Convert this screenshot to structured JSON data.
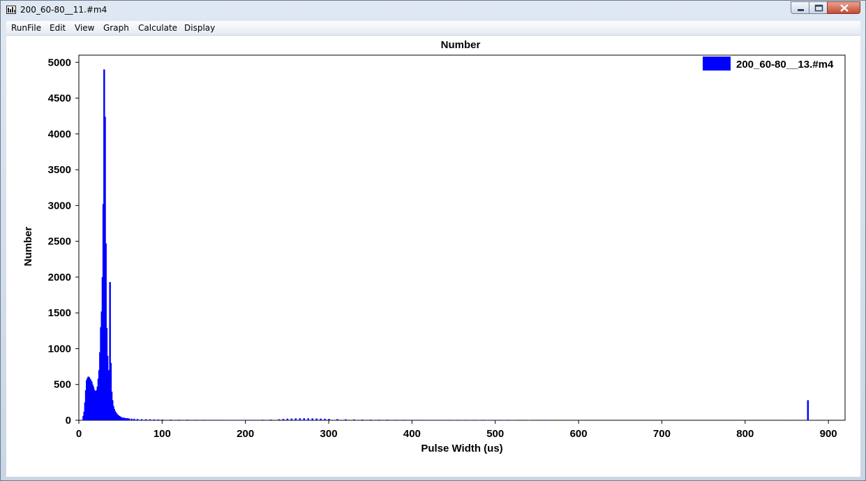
{
  "window": {
    "title": "200_60-80__11.#m4"
  },
  "menu": [
    "RunFile",
    "Edit",
    "View",
    "Graph",
    "Calculate",
    "Display"
  ],
  "chart_data": {
    "type": "bar",
    "title": "Number",
    "xlabel": "Pulse Width (us)",
    "ylabel": "Number",
    "xlim": [
      0,
      920
    ],
    "ylim": [
      0,
      5100
    ],
    "xticks": [
      0,
      100,
      200,
      300,
      400,
      500,
      600,
      700,
      800,
      900
    ],
    "yticks": [
      0,
      500,
      1000,
      1500,
      2000,
      2500,
      3000,
      3500,
      4000,
      4500,
      5000
    ],
    "bar_color": "#0000ff",
    "legend": {
      "label": "200_60-80__13.#m4",
      "position": "top-right"
    },
    "series": [
      {
        "name": "200_60-80__13.#m4",
        "points": [
          [
            5,
            60
          ],
          [
            6,
            120
          ],
          [
            7,
            250
          ],
          [
            8,
            420
          ],
          [
            9,
            560
          ],
          [
            10,
            590
          ],
          [
            11,
            610
          ],
          [
            12,
            600
          ],
          [
            13,
            580
          ],
          [
            14,
            560
          ],
          [
            15,
            540
          ],
          [
            16,
            500
          ],
          [
            17,
            470
          ],
          [
            18,
            430
          ],
          [
            19,
            410
          ],
          [
            20,
            400
          ],
          [
            21,
            420
          ],
          [
            22,
            470
          ],
          [
            23,
            580
          ],
          [
            24,
            700
          ],
          [
            25,
            950
          ],
          [
            26,
            1300
          ],
          [
            27,
            1520
          ],
          [
            28,
            2000
          ],
          [
            29,
            3020
          ],
          [
            30,
            4900
          ],
          [
            31,
            4240
          ],
          [
            32,
            2470
          ],
          [
            33,
            1290
          ],
          [
            34,
            900
          ],
          [
            35,
            700
          ],
          [
            36,
            600
          ],
          [
            37,
            1930
          ],
          [
            38,
            800
          ],
          [
            39,
            400
          ],
          [
            40,
            280
          ],
          [
            41,
            200
          ],
          [
            42,
            160
          ],
          [
            43,
            130
          ],
          [
            44,
            110
          ],
          [
            45,
            95
          ],
          [
            46,
            80
          ],
          [
            47,
            70
          ],
          [
            48,
            60
          ],
          [
            49,
            55
          ],
          [
            50,
            45
          ],
          [
            52,
            40
          ],
          [
            54,
            35
          ],
          [
            56,
            30
          ],
          [
            58,
            28
          ],
          [
            60,
            25
          ],
          [
            63,
            22
          ],
          [
            66,
            20
          ],
          [
            70,
            18
          ],
          [
            75,
            15
          ],
          [
            80,
            14
          ],
          [
            85,
            13
          ],
          [
            90,
            12
          ],
          [
            95,
            11
          ],
          [
            100,
            10
          ],
          [
            110,
            9
          ],
          [
            120,
            8
          ],
          [
            130,
            8
          ],
          [
            140,
            7
          ],
          [
            150,
            7
          ],
          [
            160,
            6
          ],
          [
            170,
            6
          ],
          [
            180,
            5
          ],
          [
            190,
            5
          ],
          [
            200,
            6
          ],
          [
            210,
            6
          ],
          [
            220,
            8
          ],
          [
            230,
            10
          ],
          [
            240,
            14
          ],
          [
            245,
            18
          ],
          [
            250,
            22
          ],
          [
            255,
            24
          ],
          [
            260,
            26
          ],
          [
            265,
            27
          ],
          [
            270,
            28
          ],
          [
            275,
            27
          ],
          [
            280,
            26
          ],
          [
            285,
            25
          ],
          [
            290,
            23
          ],
          [
            295,
            21
          ],
          [
            300,
            19
          ],
          [
            310,
            16
          ],
          [
            320,
            14
          ],
          [
            330,
            12
          ],
          [
            340,
            10
          ],
          [
            350,
            9
          ],
          [
            360,
            8
          ],
          [
            370,
            8
          ],
          [
            380,
            7
          ],
          [
            390,
            7
          ],
          [
            400,
            6
          ],
          [
            410,
            6
          ],
          [
            420,
            5
          ],
          [
            430,
            5
          ],
          [
            440,
            5
          ],
          [
            450,
            4
          ],
          [
            460,
            4
          ],
          [
            470,
            4
          ],
          [
            480,
            4
          ],
          [
            490,
            3
          ],
          [
            500,
            3
          ],
          [
            510,
            3
          ],
          [
            520,
            3
          ],
          [
            540,
            3
          ],
          [
            560,
            2
          ],
          [
            580,
            2
          ],
          [
            600,
            2
          ],
          [
            620,
            2
          ],
          [
            650,
            2
          ],
          [
            700,
            2
          ],
          [
            750,
            2
          ],
          [
            800,
            2
          ],
          [
            850,
            2
          ],
          [
            875,
            280
          ]
        ]
      }
    ]
  }
}
